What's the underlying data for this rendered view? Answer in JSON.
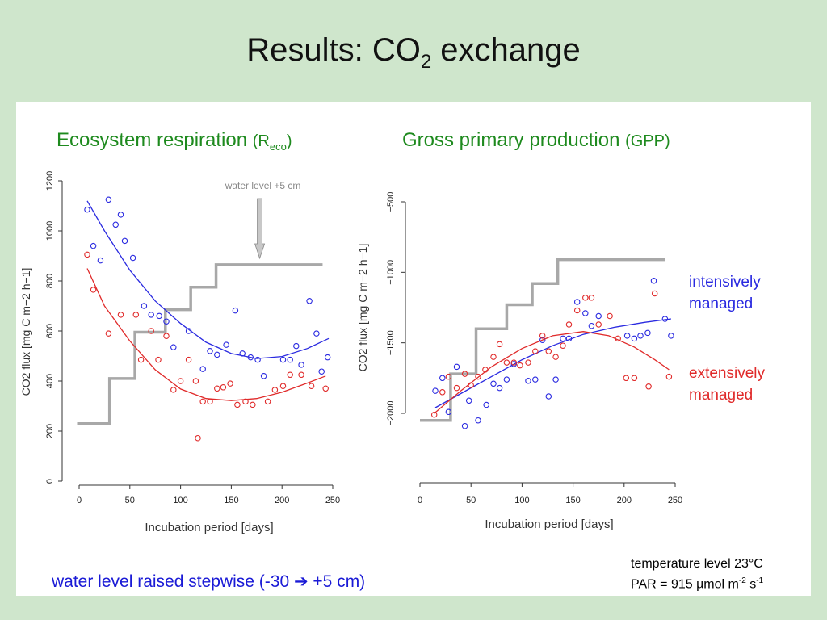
{
  "slide": {
    "title_main": "Results: CO",
    "title_sub": "2",
    "title_rest": " exchange"
  },
  "labels": {
    "reco_title": "Ecosystem respiration ",
    "reco_paren_open": "(R",
    "reco_subscript": "eco",
    "reco_paren_close": ")",
    "gpp_title": "Gross primary production ",
    "gpp_paren": "(GPP)",
    "legend_intensive_1": "intensively",
    "legend_intensive_2": "managed",
    "legend_extensive_1": "extensively",
    "legend_extensive_2": "managed",
    "water_note_text": "water level raised stepwise (-30 ",
    "water_note_arrow": "➔",
    "water_note_end": " +5 cm)",
    "temperature": "temperature level 23°C",
    "par_prefix": "PAR = 915 µmol m",
    "par_exp1": "-2",
    "par_mid": " s",
    "par_exp2": "-1"
  },
  "colors": {
    "intensive": "#2a2ae0",
    "extensive": "#e02a2a",
    "water_level": "#a8a8a8",
    "heading": "#1e8a1e",
    "note": "#1a1ad6"
  },
  "chart_data": [
    {
      "type": "scatter",
      "panel": "reco",
      "xlabel": "Incubation period [days]",
      "ylabel": "CO2 flux [mg C m−2 h−1]",
      "xlim": [
        0,
        250
      ],
      "ylim": [
        0,
        1200
      ],
      "xticks": [
        0,
        50,
        100,
        150,
        200,
        250
      ],
      "yticks": [
        0,
        200,
        400,
        600,
        800,
        1000,
        1200
      ],
      "annotation": "water level +5 cm",
      "annotation_x": 178,
      "water_level_steps": [
        [
          -2,
          230
        ],
        [
          30,
          230
        ],
        [
          30,
          410
        ],
        [
          55,
          410
        ],
        [
          55,
          595
        ],
        [
          85,
          595
        ],
        [
          85,
          685
        ],
        [
          110,
          685
        ],
        [
          110,
          775
        ],
        [
          135,
          775
        ],
        [
          135,
          865
        ],
        [
          240,
          865
        ]
      ],
      "series": [
        {
          "name": "intensively managed",
          "color": "#2a2ae0",
          "points": [
            [
              8,
              1085
            ],
            [
              14,
              940
            ],
            [
              21,
              882
            ],
            [
              29,
              1125
            ],
            [
              36,
              1025
            ],
            [
              41,
              1065
            ],
            [
              45,
              960
            ],
            [
              53,
              892
            ],
            [
              64,
              700
            ],
            [
              71,
              665
            ],
            [
              79,
              660
            ],
            [
              86,
              638
            ],
            [
              93,
              535
            ],
            [
              108,
              600
            ],
            [
              122,
              448
            ],
            [
              129,
              520
            ],
            [
              136,
              505
            ],
            [
              145,
              545
            ],
            [
              154,
              682
            ],
            [
              161,
              510
            ],
            [
              169,
              495
            ],
            [
              176,
              485
            ],
            [
              182,
              420
            ],
            [
              201,
              485
            ],
            [
              208,
              485
            ],
            [
              214,
              540
            ],
            [
              219,
              465
            ],
            [
              227,
              720
            ],
            [
              234,
              590
            ],
            [
              239,
              438
            ],
            [
              245,
              495
            ]
          ],
          "fit": [
            [
              8,
              1120
            ],
            [
              25,
              1000
            ],
            [
              50,
              843
            ],
            [
              75,
              720
            ],
            [
              100,
              630
            ],
            [
              125,
              555
            ],
            [
              150,
              510
            ],
            [
              175,
              490
            ],
            [
              200,
              498
            ],
            [
              225,
              530
            ],
            [
              246,
              570
            ]
          ]
        },
        {
          "name": "extensively managed",
          "color": "#e02a2a",
          "points": [
            [
              8,
              905
            ],
            [
              14,
              765
            ],
            [
              29,
              590
            ],
            [
              41,
              665
            ],
            [
              56,
              665
            ],
            [
              61,
              485
            ],
            [
              71,
              600
            ],
            [
              78,
              485
            ],
            [
              86,
              580
            ],
            [
              93,
              365
            ],
            [
              100,
              400
            ],
            [
              108,
              485
            ],
            [
              115,
              400
            ],
            [
              117,
              172
            ],
            [
              122,
              318
            ],
            [
              129,
              318
            ],
            [
              136,
              370
            ],
            [
              142,
              375
            ],
            [
              149,
              390
            ],
            [
              156,
              305
            ],
            [
              164,
              318
            ],
            [
              171,
              305
            ],
            [
              186,
              318
            ],
            [
              193,
              365
            ],
            [
              201,
              380
            ],
            [
              208,
              425
            ],
            [
              219,
              425
            ],
            [
              229,
              380
            ],
            [
              243,
              370
            ]
          ],
          "fit": [
            [
              8,
              850
            ],
            [
              25,
              700
            ],
            [
              50,
              560
            ],
            [
              75,
              445
            ],
            [
              100,
              368
            ],
            [
              125,
              330
            ],
            [
              150,
              322
            ],
            [
              175,
              330
            ],
            [
              200,
              355
            ],
            [
              225,
              392
            ],
            [
              243,
              420
            ]
          ]
        }
      ]
    },
    {
      "type": "scatter",
      "panel": "gpp",
      "xlabel": "Incubation period [days]",
      "ylabel": "CO2 flux [mg C m−2 h−1]",
      "xlim": [
        0,
        250
      ],
      "ylim": [
        -2000,
        -500
      ],
      "xticks": [
        0,
        50,
        100,
        150,
        200,
        250
      ],
      "yticks": [
        -2000,
        -1500,
        -1000,
        -500
      ],
      "water_level_steps": [
        [
          0,
          -2050
        ],
        [
          30,
          -2050
        ],
        [
          30,
          -1720
        ],
        [
          55,
          -1720
        ],
        [
          55,
          -1400
        ],
        [
          85,
          -1400
        ],
        [
          85,
          -1230
        ],
        [
          110,
          -1230
        ],
        [
          110,
          -1080
        ],
        [
          135,
          -1080
        ],
        [
          135,
          -910
        ],
        [
          240,
          -910
        ]
      ],
      "series": [
        {
          "name": "intensively managed",
          "color": "#2a2ae0",
          "points": [
            [
              15,
              -1840
            ],
            [
              22,
              -1750
            ],
            [
              28,
              -1990
            ],
            [
              36,
              -1670
            ],
            [
              44,
              -2090
            ],
            [
              48,
              -1910
            ],
            [
              57,
              -2050
            ],
            [
              65,
              -1940
            ],
            [
              72,
              -1790
            ],
            [
              78,
              -1820
            ],
            [
              85,
              -1760
            ],
            [
              92,
              -1650
            ],
            [
              106,
              -1770
            ],
            [
              113,
              -1760
            ],
            [
              120,
              -1480
            ],
            [
              126,
              -1880
            ],
            [
              133,
              -1760
            ],
            [
              140,
              -1470
            ],
            [
              146,
              -1470
            ],
            [
              154,
              -1210
            ],
            [
              162,
              -1290
            ],
            [
              168,
              -1380
            ],
            [
              175,
              -1310
            ],
            [
              203,
              -1450
            ],
            [
              210,
              -1470
            ],
            [
              216,
              -1450
            ],
            [
              223,
              -1430
            ],
            [
              229,
              -1060
            ],
            [
              240,
              -1330
            ],
            [
              246,
              -1450
            ]
          ],
          "fit": [
            [
              15,
              -1960
            ],
            [
              40,
              -1860
            ],
            [
              70,
              -1740
            ],
            [
              100,
              -1620
            ],
            [
              130,
              -1520
            ],
            [
              160,
              -1440
            ],
            [
              190,
              -1390
            ],
            [
              220,
              -1355
            ],
            [
              246,
              -1330
            ]
          ]
        },
        {
          "name": "extensively managed",
          "color": "#e02a2a",
          "points": [
            [
              14,
              -2010
            ],
            [
              22,
              -1850
            ],
            [
              28,
              -1740
            ],
            [
              36,
              -1820
            ],
            [
              44,
              -1720
            ],
            [
              50,
              -1800
            ],
            [
              57,
              -1740
            ],
            [
              64,
              -1690
            ],
            [
              72,
              -1600
            ],
            [
              78,
              -1510
            ],
            [
              85,
              -1640
            ],
            [
              92,
              -1640
            ],
            [
              98,
              -1660
            ],
            [
              106,
              -1640
            ],
            [
              113,
              -1560
            ],
            [
              120,
              -1450
            ],
            [
              126,
              -1560
            ],
            [
              133,
              -1600
            ],
            [
              140,
              -1520
            ],
            [
              146,
              -1370
            ],
            [
              154,
              -1270
            ],
            [
              162,
              -1180
            ],
            [
              168,
              -1180
            ],
            [
              175,
              -1370
            ],
            [
              186,
              -1310
            ],
            [
              194,
              -1470
            ],
            [
              202,
              -1750
            ],
            [
              210,
              -1750
            ],
            [
              224,
              -1810
            ],
            [
              230,
              -1150
            ],
            [
              244,
              -1740
            ]
          ],
          "fit": [
            [
              14,
              -2000
            ],
            [
              40,
              -1840
            ],
            [
              70,
              -1670
            ],
            [
              100,
              -1540
            ],
            [
              130,
              -1450
            ],
            [
              160,
              -1420
            ],
            [
              185,
              -1450
            ],
            [
              210,
              -1530
            ],
            [
              230,
              -1620
            ],
            [
              244,
              -1690
            ]
          ]
        }
      ]
    }
  ]
}
